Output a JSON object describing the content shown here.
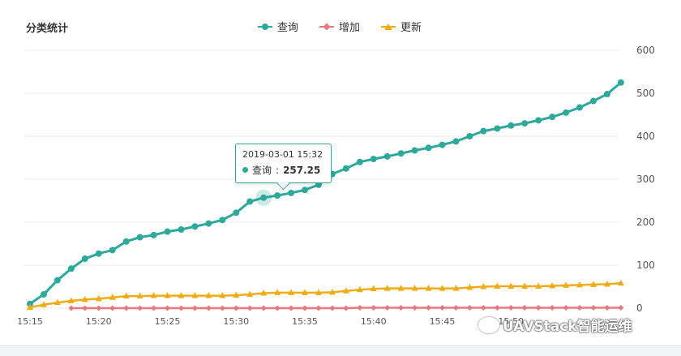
{
  "panel": {
    "title": "分类统计"
  },
  "colors": {
    "query": "#2ea89a",
    "add": "#e8787e",
    "update": "#f0ac18",
    "grid": "#e9e9e9",
    "axis_text": "#555555"
  },
  "tooltip": {
    "time": "2019-03-01 15:32",
    "series": "查询",
    "value": "257.25"
  },
  "watermark": {
    "text": "UAVStack智能运维"
  },
  "chart_data": {
    "type": "line",
    "title": "分类统计",
    "x_ticks": [
      "15:15",
      "15:20",
      "15:25",
      "15:30",
      "15:35",
      "15:40",
      "15:45",
      "15:50"
    ],
    "y_ticks": [
      "0",
      "100",
      "200",
      "300",
      "400",
      "500",
      "600"
    ],
    "ylim": [
      0,
      600
    ],
    "y_axis_position": "right",
    "grid": true,
    "legend_position": "top-center",
    "series": [
      {
        "name": "查询",
        "key": "query",
        "marker": "circle",
        "start": "15:15",
        "values": [
          10,
          32,
          65,
          92,
          115,
          127,
          135,
          155,
          165,
          170,
          178,
          183,
          190,
          197,
          205,
          222,
          248,
          257,
          262,
          268,
          275,
          287,
          312,
          325,
          340,
          347,
          353,
          360,
          367,
          373,
          380,
          388,
          400,
          412,
          418,
          425,
          430,
          437,
          445,
          455,
          467,
          482,
          498,
          525
        ]
      },
      {
        "name": "增加",
        "key": "add",
        "marker": "diamond",
        "start": "15:18",
        "values": [
          0,
          0,
          0,
          0,
          0,
          0,
          0,
          0,
          0,
          0,
          0,
          0,
          0,
          0,
          0,
          0,
          0,
          0,
          0,
          0,
          0,
          1,
          1,
          1,
          1,
          1,
          1,
          1,
          1,
          1,
          1,
          1,
          1,
          1,
          1,
          1,
          1,
          1,
          1,
          1,
          1
        ]
      },
      {
        "name": "更新",
        "key": "update",
        "marker": "triangle",
        "start": "15:15",
        "values": [
          2,
          8,
          13,
          17,
          20,
          22,
          25,
          28,
          28,
          29,
          29,
          29,
          29,
          29,
          29,
          30,
          32,
          35,
          36,
          36,
          36,
          36,
          37,
          40,
          43,
          45,
          46,
          46,
          46,
          46,
          46,
          46,
          48,
          50,
          51,
          51,
          51,
          51,
          52,
          53,
          54,
          55,
          56,
          58
        ]
      }
    ]
  }
}
